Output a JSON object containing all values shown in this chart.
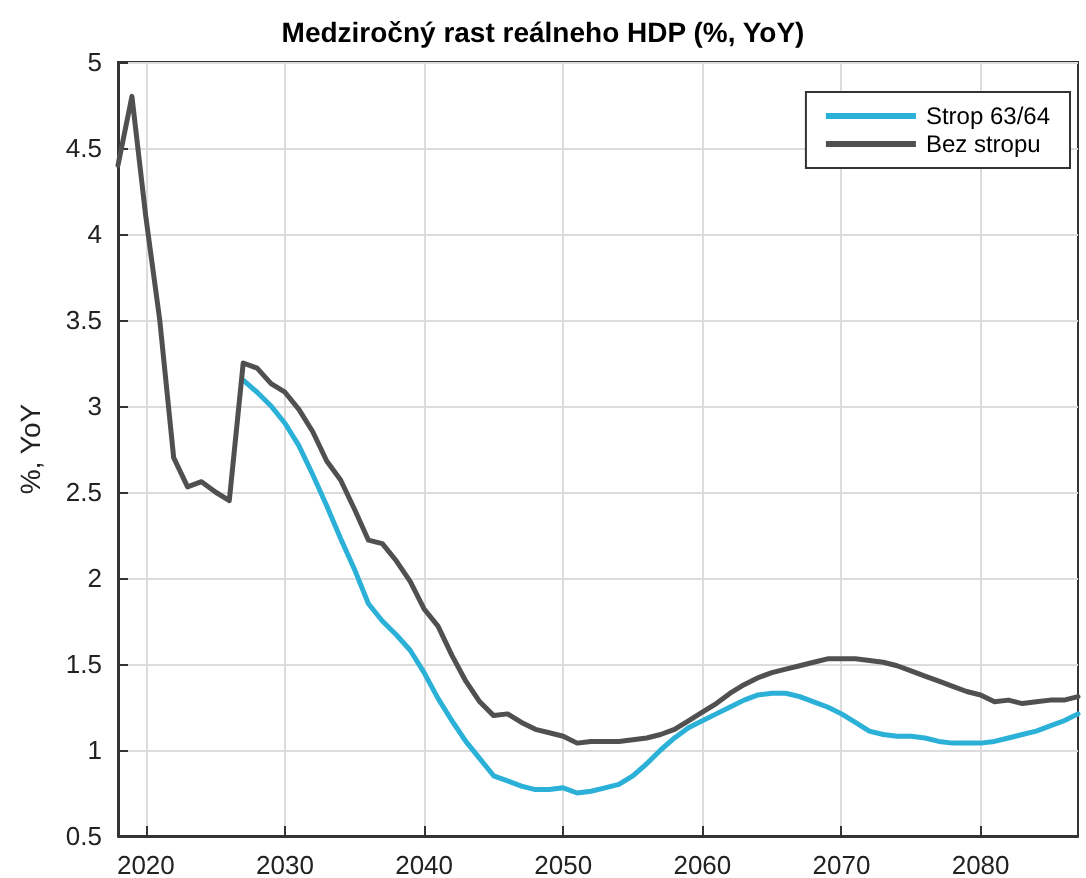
{
  "chart_data": {
    "type": "line",
    "title": "Medziročný rast reálneho HDP (%, YoY)",
    "ylabel": "%, YoY",
    "x": [
      2018,
      2019,
      2020,
      2021,
      2022,
      2023,
      2024,
      2025,
      2026,
      2027,
      2028,
      2029,
      2030,
      2031,
      2032,
      2033,
      2034,
      2035,
      2036,
      2037,
      2038,
      2039,
      2040,
      2041,
      2042,
      2043,
      2044,
      2045,
      2046,
      2047,
      2048,
      2049,
      2050,
      2051,
      2052,
      2053,
      2054,
      2055,
      2056,
      2057,
      2058,
      2059,
      2060,
      2061,
      2062,
      2063,
      2064,
      2065,
      2066,
      2067,
      2068,
      2069,
      2070,
      2071,
      2072,
      2073,
      2074,
      2075,
      2076,
      2077,
      2078,
      2079,
      2080,
      2081,
      2082,
      2083,
      2084,
      2085,
      2086,
      2087
    ],
    "series": [
      {
        "name": "Strop 63/64",
        "color": "#2bb0d8",
        "values": [
          null,
          null,
          null,
          null,
          null,
          null,
          null,
          null,
          null,
          3.15,
          3.08,
          3.0,
          2.9,
          2.77,
          2.6,
          2.42,
          2.23,
          2.05,
          1.85,
          1.75,
          1.67,
          1.58,
          1.45,
          1.3,
          1.17,
          1.05,
          0.95,
          0.85,
          0.82,
          0.79,
          0.77,
          0.77,
          0.78,
          0.75,
          0.76,
          0.78,
          0.8,
          0.85,
          0.92,
          1.0,
          1.07,
          1.13,
          1.17,
          1.21,
          1.25,
          1.29,
          1.32,
          1.33,
          1.33,
          1.31,
          1.28,
          1.25,
          1.21,
          1.16,
          1.11,
          1.09,
          1.08,
          1.08,
          1.07,
          1.05,
          1.04,
          1.04,
          1.04,
          1.05,
          1.07,
          1.09,
          1.11,
          1.14,
          1.17,
          1.21
        ]
      },
      {
        "name": "Bez stropu",
        "color": "#505050",
        "values": [
          4.4,
          4.8,
          4.1,
          3.5,
          2.7,
          2.53,
          2.56,
          2.5,
          2.45,
          3.25,
          3.22,
          3.13,
          3.08,
          2.98,
          2.85,
          2.68,
          2.57,
          2.4,
          2.22,
          2.2,
          2.1,
          1.98,
          1.82,
          1.72,
          1.55,
          1.4,
          1.28,
          1.2,
          1.21,
          1.16,
          1.12,
          1.1,
          1.08,
          1.04,
          1.05,
          1.05,
          1.05,
          1.06,
          1.07,
          1.09,
          1.12,
          1.17,
          1.22,
          1.27,
          1.33,
          1.38,
          1.42,
          1.45,
          1.47,
          1.49,
          1.51,
          1.53,
          1.53,
          1.53,
          1.52,
          1.51,
          1.49,
          1.46,
          1.43,
          1.4,
          1.37,
          1.34,
          1.32,
          1.28,
          1.29,
          1.27,
          1.28,
          1.29,
          1.29,
          1.31
        ]
      }
    ],
    "xlim": [
      2018,
      2087
    ],
    "xticks": [
      2020,
      2030,
      2040,
      2050,
      2060,
      2070,
      2080
    ],
    "ylim": [
      0.5,
      5
    ],
    "yticks": [
      0.5,
      1,
      1.5,
      2,
      2.5,
      3,
      3.5,
      4,
      4.5,
      5
    ],
    "grid": true,
    "legend": "top right",
    "marker": "none",
    "line_style": "solid"
  }
}
